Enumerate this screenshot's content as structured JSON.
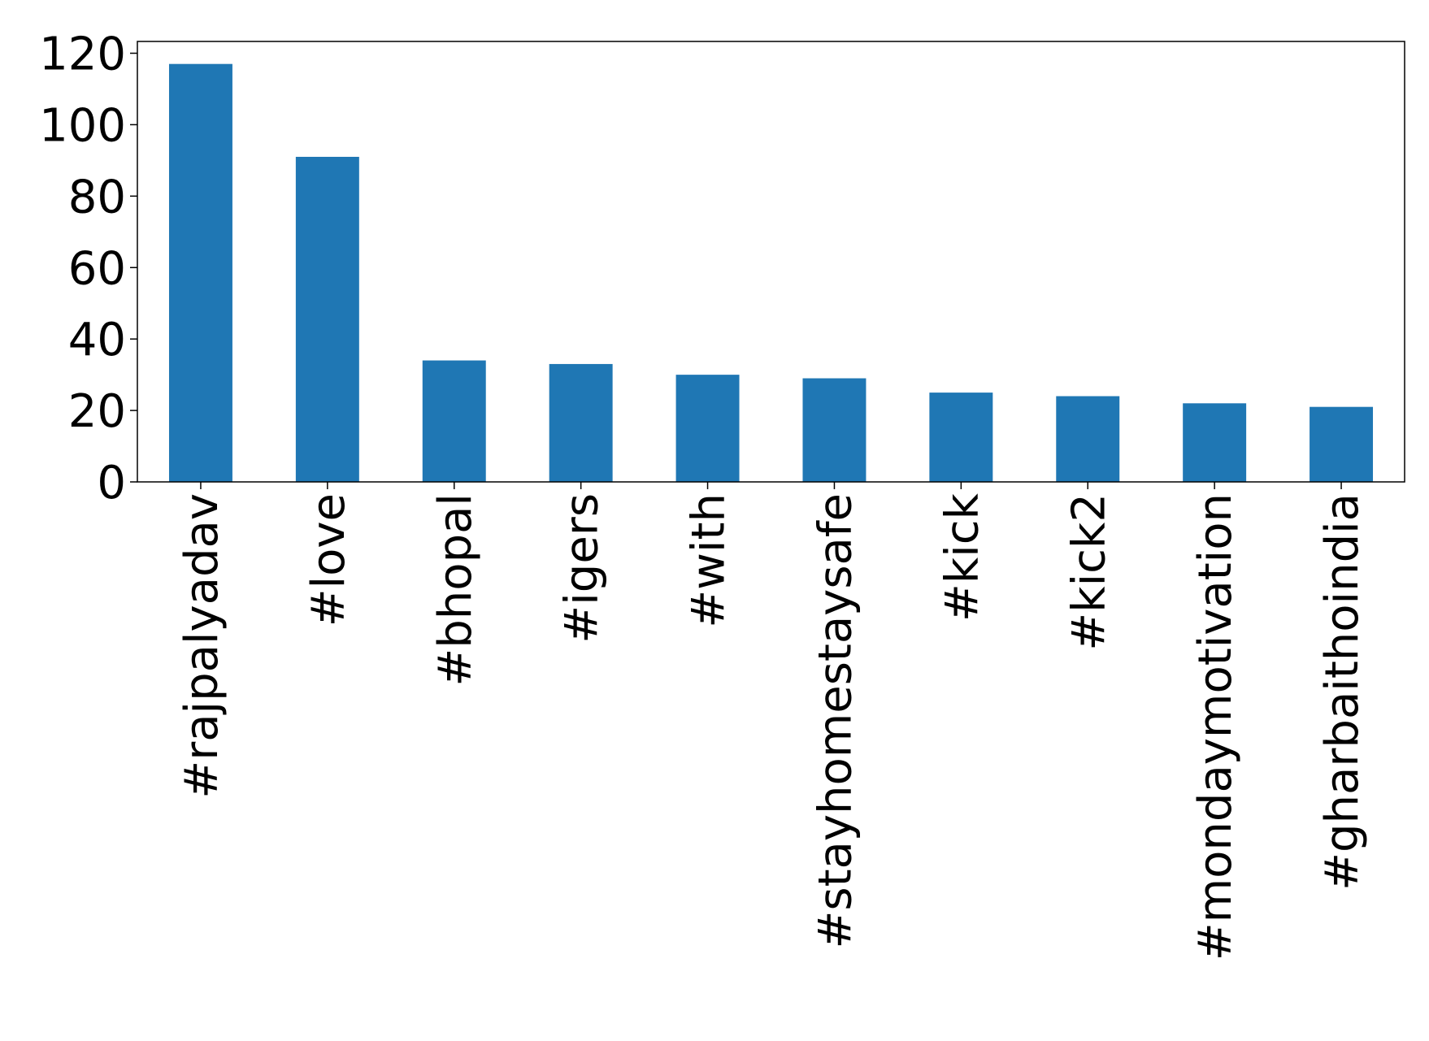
{
  "chart_data": {
    "type": "bar",
    "categories": [
      "#rajpalyadav",
      "#love",
      "#bhopal",
      "#igers",
      "#with",
      "#stayhomestaysafe",
      "#kick",
      "#kick2",
      "#mondaymotivation",
      "#gharbaithoindia"
    ],
    "values": [
      117,
      91,
      34,
      33,
      30,
      29,
      25,
      24,
      22,
      21
    ],
    "color": "#1f77b4",
    "ylim": [
      0,
      123.3
    ],
    "yticks": [
      0,
      20,
      40,
      60,
      80,
      100,
      120
    ],
    "grid": false
  }
}
